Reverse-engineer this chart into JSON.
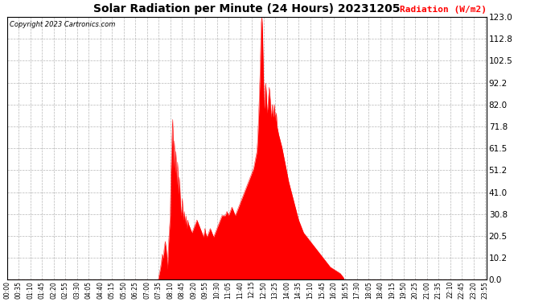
{
  "title": "Solar Radiation per Minute (24 Hours) 20231205",
  "ylabel": "Radiation (W/m2)",
  "copyright_text": "Copyright 2023 Cartronics.com",
  "background_color": "#ffffff",
  "fill_color": "#ff0000",
  "line_color": "#ff0000",
  "grid_color": "#888888",
  "title_color": "#000000",
  "ylabel_color": "#ff0000",
  "copyright_color": "#000000",
  "ylim": [
    0.0,
    123.0
  ],
  "yticks": [
    0.0,
    10.2,
    20.5,
    30.8,
    41.0,
    51.2,
    61.5,
    71.8,
    82.0,
    92.2,
    102.5,
    112.8,
    123.0
  ],
  "x_tick_labels": [
    "00:00",
    "00:35",
    "01:10",
    "01:45",
    "02:20",
    "02:55",
    "03:30",
    "04:05",
    "04:40",
    "05:15",
    "05:50",
    "06:25",
    "07:00",
    "07:35",
    "08:10",
    "08:45",
    "09:20",
    "09:55",
    "10:30",
    "11:05",
    "11:40",
    "12:15",
    "12:50",
    "13:25",
    "14:00",
    "14:35",
    "15:10",
    "15:45",
    "16:20",
    "16:55",
    "17:30",
    "18:05",
    "18:40",
    "19:15",
    "19:50",
    "20:25",
    "21:00",
    "21:35",
    "22:10",
    "22:45",
    "23:20",
    "23:55"
  ],
  "control_points": [
    [
      0,
      0
    ],
    [
      454,
      0
    ],
    [
      456,
      2
    ],
    [
      460,
      5
    ],
    [
      463,
      8
    ],
    [
      466,
      12
    ],
    [
      469,
      10
    ],
    [
      472,
      15
    ],
    [
      475,
      18
    ],
    [
      478,
      14
    ],
    [
      480,
      10
    ],
    [
      482,
      5
    ],
    [
      484,
      15
    ],
    [
      486,
      20
    ],
    [
      488,
      25
    ],
    [
      490,
      30
    ],
    [
      491,
      40
    ],
    [
      492,
      50
    ],
    [
      493,
      55
    ],
    [
      494,
      60
    ],
    [
      495,
      65
    ],
    [
      496,
      70
    ],
    [
      497,
      75
    ],
    [
      498,
      70
    ],
    [
      499,
      60
    ],
    [
      500,
      52
    ],
    [
      501,
      58
    ],
    [
      502,
      65
    ],
    [
      503,
      60
    ],
    [
      504,
      55
    ],
    [
      505,
      50
    ],
    [
      506,
      55
    ],
    [
      507,
      60
    ],
    [
      508,
      52
    ],
    [
      509,
      48
    ],
    [
      510,
      44
    ],
    [
      511,
      50
    ],
    [
      512,
      55
    ],
    [
      513,
      50
    ],
    [
      514,
      44
    ],
    [
      515,
      40
    ],
    [
      516,
      44
    ],
    [
      517,
      48
    ],
    [
      518,
      45
    ],
    [
      519,
      42
    ],
    [
      520,
      38
    ],
    [
      521,
      35
    ],
    [
      522,
      32
    ],
    [
      523,
      30
    ],
    [
      524,
      32
    ],
    [
      525,
      35
    ],
    [
      526,
      38
    ],
    [
      527,
      35
    ],
    [
      528,
      32
    ],
    [
      529,
      30
    ],
    [
      530,
      28
    ],
    [
      531,
      30
    ],
    [
      532,
      32
    ],
    [
      533,
      30
    ],
    [
      534,
      28
    ],
    [
      535,
      26
    ],
    [
      536,
      28
    ],
    [
      537,
      30
    ],
    [
      538,
      28
    ],
    [
      539,
      26
    ],
    [
      540,
      24
    ],
    [
      541,
      26
    ],
    [
      542,
      28
    ],
    [
      545,
      26
    ],
    [
      550,
      24
    ],
    [
      555,
      22
    ],
    [
      560,
      24
    ],
    [
      565,
      26
    ],
    [
      570,
      28
    ],
    [
      575,
      26
    ],
    [
      580,
      24
    ],
    [
      585,
      22
    ],
    [
      590,
      20
    ],
    [
      592,
      22
    ],
    [
      594,
      24
    ],
    [
      596,
      22
    ],
    [
      600,
      20
    ],
    [
      605,
      22
    ],
    [
      610,
      24
    ],
    [
      615,
      22
    ],
    [
      620,
      20
    ],
    [
      625,
      22
    ],
    [
      630,
      24
    ],
    [
      635,
      26
    ],
    [
      640,
      28
    ],
    [
      645,
      30
    ],
    [
      650,
      30
    ],
    [
      655,
      30
    ],
    [
      660,
      32
    ],
    [
      665,
      30
    ],
    [
      670,
      32
    ],
    [
      675,
      34
    ],
    [
      680,
      32
    ],
    [
      685,
      30
    ],
    [
      690,
      32
    ],
    [
      695,
      34
    ],
    [
      700,
      36
    ],
    [
      705,
      38
    ],
    [
      710,
      40
    ],
    [
      715,
      42
    ],
    [
      720,
      44
    ],
    [
      725,
      46
    ],
    [
      730,
      48
    ],
    [
      735,
      50
    ],
    [
      740,
      52
    ],
    [
      745,
      56
    ],
    [
      750,
      60
    ],
    [
      752,
      65
    ],
    [
      754,
      72
    ],
    [
      756,
      80
    ],
    [
      758,
      90
    ],
    [
      760,
      100
    ],
    [
      761,
      108
    ],
    [
      762,
      115
    ],
    [
      763,
      120
    ],
    [
      764,
      122
    ],
    [
      765,
      122.5
    ],
    [
      766,
      120
    ],
    [
      767,
      115
    ],
    [
      768,
      108
    ],
    [
      769,
      100
    ],
    [
      770,
      92
    ],
    [
      771,
      85
    ],
    [
      772,
      80
    ],
    [
      773,
      82
    ],
    [
      774,
      85
    ],
    [
      775,
      90
    ],
    [
      776,
      92
    ],
    [
      777,
      90
    ],
    [
      778,
      88
    ],
    [
      779,
      84
    ],
    [
      780,
      80
    ],
    [
      781,
      78
    ],
    [
      782,
      80
    ],
    [
      783,
      82
    ],
    [
      784,
      84
    ],
    [
      785,
      86
    ],
    [
      786,
      88
    ],
    [
      787,
      90
    ],
    [
      788,
      88
    ],
    [
      789,
      86
    ],
    [
      790,
      84
    ],
    [
      791,
      80
    ],
    [
      792,
      78
    ],
    [
      793,
      76
    ],
    [
      794,
      78
    ],
    [
      795,
      80
    ],
    [
      796,
      82
    ],
    [
      797,
      80
    ],
    [
      798,
      78
    ],
    [
      799,
      76
    ],
    [
      800,
      78
    ],
    [
      801,
      80
    ],
    [
      802,
      82
    ],
    [
      803,
      80
    ],
    [
      804,
      78
    ],
    [
      805,
      76
    ],
    [
      806,
      74
    ],
    [
      807,
      76
    ],
    [
      808,
      78
    ],
    [
      809,
      76
    ],
    [
      810,
      72
    ],
    [
      815,
      68
    ],
    [
      820,
      65
    ],
    [
      825,
      62
    ],
    [
      830,
      58
    ],
    [
      835,
      54
    ],
    [
      840,
      50
    ],
    [
      845,
      46
    ],
    [
      850,
      43
    ],
    [
      855,
      40
    ],
    [
      860,
      37
    ],
    [
      865,
      34
    ],
    [
      870,
      31
    ],
    [
      875,
      28
    ],
    [
      880,
      26
    ],
    [
      885,
      24
    ],
    [
      890,
      22
    ],
    [
      900,
      20
    ],
    [
      910,
      18
    ],
    [
      920,
      16
    ],
    [
      930,
      14
    ],
    [
      940,
      12
    ],
    [
      950,
      10
    ],
    [
      960,
      8
    ],
    [
      970,
      6
    ],
    [
      980,
      5
    ],
    [
      990,
      4
    ],
    [
      1000,
      3
    ],
    [
      1005,
      2
    ],
    [
      1010,
      1
    ],
    [
      1012,
      0
    ],
    [
      1439,
      0
    ]
  ]
}
